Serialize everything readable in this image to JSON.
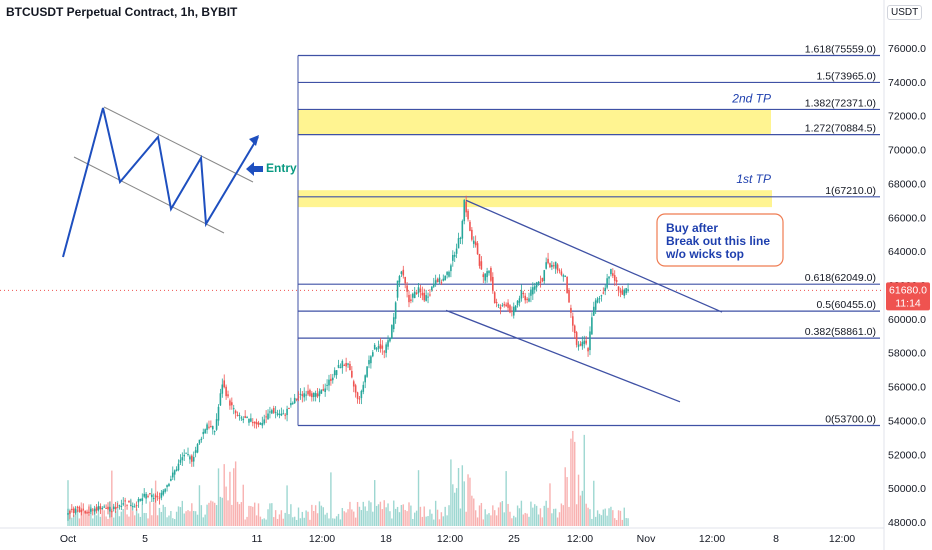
{
  "header": {
    "title": "BTCUSDT Perpetual Contract, 1h, BYBIT",
    "currency": "USDT"
  },
  "colors": {
    "up": "#26a69a",
    "down": "#ef5350",
    "fib_line": "#3f51a5",
    "tp_zone": "#fff176",
    "annotation_blue": "#1e3fae",
    "entry_green": "#089981",
    "callout_border": "#ef7c52",
    "price_tag": "#ef5350",
    "channel_line": "#3f51a5",
    "pattern_line": "#1e4fbf",
    "pattern_channel": "#888888"
  },
  "chart_data": {
    "type": "candlestick",
    "symbol": "BTCUSDT Perpetual Contract",
    "timeframe": "1h",
    "exchange": "BYBIT",
    "yaxis": {
      "ticks": [
        48000,
        50000,
        52000,
        54000,
        56000,
        58000,
        60000,
        62000,
        64000,
        66000,
        68000,
        70000,
        72000,
        74000,
        76000
      ],
      "tick_labels": [
        "48000.0",
        "50000.0",
        "52000.0",
        "54000.0",
        "56000.0",
        "58000.0",
        "60000.0",
        "62000.0",
        "64000.0",
        "66000.0",
        "68000.0",
        "70000.0",
        "72000.0",
        "74000.0",
        "76000.0"
      ],
      "ylim": [
        47400,
        77400
      ]
    },
    "xaxis": {
      "labels": [
        "Oct",
        "5",
        "11",
        "12:00",
        "18",
        "12:00",
        "25",
        "12:00",
        "Nov",
        "12:00",
        "8",
        "12:00"
      ]
    },
    "current_price": {
      "value": 61680.0,
      "label": "61680.0",
      "countdown": "11:14"
    },
    "price_path": [
      [
        0,
        48500
      ],
      [
        6,
        48800
      ],
      [
        12,
        48600
      ],
      [
        18,
        48900
      ],
      [
        24,
        48700
      ],
      [
        30,
        49200
      ],
      [
        36,
        49000
      ],
      [
        42,
        49600
      ],
      [
        48,
        49400
      ],
      [
        54,
        50400
      ],
      [
        58,
        51200
      ],
      [
        62,
        52000
      ],
      [
        66,
        51700
      ],
      [
        70,
        52800
      ],
      [
        74,
        53800
      ],
      [
        78,
        53400
      ],
      [
        82,
        56200
      ],
      [
        86,
        55000
      ],
      [
        90,
        54200
      ],
      [
        96,
        54000
      ],
      [
        102,
        53800
      ],
      [
        108,
        54600
      ],
      [
        114,
        54300
      ],
      [
        120,
        55200
      ],
      [
        126,
        55700
      ],
      [
        132,
        55400
      ],
      [
        138,
        56300
      ],
      [
        142,
        57000
      ],
      [
        145,
        57400
      ],
      [
        148,
        57200
      ],
      [
        151,
        56000
      ],
      [
        153,
        55200
      ],
      [
        155,
        55600
      ],
      [
        158,
        57200
      ],
      [
        161,
        58200
      ],
      [
        164,
        58500
      ],
      [
        167,
        58000
      ],
      [
        170,
        59000
      ],
      [
        172,
        60000
      ],
      [
        174,
        62200
      ],
      [
        176,
        62800
      ],
      [
        178,
        62000
      ],
      [
        180,
        61000
      ],
      [
        182,
        61400
      ],
      [
        185,
        61700
      ],
      [
        188,
        61200
      ],
      [
        191,
        61600
      ],
      [
        194,
        62400
      ],
      [
        197,
        62200
      ],
      [
        200,
        62600
      ],
      [
        203,
        63600
      ],
      [
        205,
        64300
      ],
      [
        207,
        64900
      ],
      [
        209,
        67000
      ],
      [
        211,
        65800
      ],
      [
        213,
        64600
      ],
      [
        215,
        64400
      ],
      [
        217,
        63300
      ],
      [
        219,
        62300
      ],
      [
        222,
        63000
      ],
      [
        225,
        61000
      ],
      [
        228,
        60600
      ],
      [
        231,
        60900
      ],
      [
        234,
        60300
      ],
      [
        236,
        60800
      ],
      [
        239,
        61500
      ],
      [
        242,
        61100
      ],
      [
        245,
        61800
      ],
      [
        248,
        62300
      ],
      [
        250,
        62200
      ],
      [
        252,
        63500
      ],
      [
        254,
        63000
      ],
      [
        257,
        63200
      ],
      [
        259,
        62800
      ],
      [
        262,
        62400
      ],
      [
        264,
        60800
      ],
      [
        266,
        59600
      ],
      [
        268,
        58500
      ],
      [
        270,
        58300
      ],
      [
        272,
        58700
      ],
      [
        274,
        58200
      ],
      [
        276,
        60200
      ],
      [
        278,
        61000
      ],
      [
        280,
        61200
      ],
      [
        282,
        61600
      ],
      [
        284,
        62400
      ],
      [
        286,
        62800
      ],
      [
        288,
        62300
      ],
      [
        290,
        61800
      ],
      [
        292,
        61400
      ],
      [
        294,
        61680
      ]
    ],
    "volume_note": "green/red volume bars along the bottom, largest around the Oct 20-21 and Oct 28 region",
    "fib_levels": [
      {
        "ratio_label": "1.618(75559.0)",
        "price": 75559.0
      },
      {
        "ratio_label": "1.5(73965.0)",
        "price": 73965.0
      },
      {
        "ratio_label": "1.382(72371.0)",
        "price": 72371.0
      },
      {
        "ratio_label": "1.272(70884.5)",
        "price": 70884.5
      },
      {
        "ratio_label": "1(67210.0)",
        "price": 67210.0
      },
      {
        "ratio_label": "0.618(62049.0)",
        "price": 62049.0
      },
      {
        "ratio_label": "0.5(60455.0)",
        "price": 60455.0
      },
      {
        "ratio_label": "0.382(58861.0)",
        "price": 58861.0
      },
      {
        "ratio_label": "0(53700.0)",
        "price": 53700.0
      }
    ],
    "take_profit_zones": [
      {
        "label": "2nd TP",
        "from_price": 70884.5,
        "to_price": 72371.0
      },
      {
        "label": "1st TP",
        "from_price": 66600.0,
        "to_price": 67600.0
      }
    ],
    "channel": {
      "upper": {
        "from": {
          "x": 209,
          "price": 67000
        },
        "to": {
          "x": 338,
          "price": 60400
        }
      },
      "lower": {
        "from": {
          "x": 217,
          "price": 60500
        },
        "to": {
          "x": 305,
          "price": 55100
        }
      }
    },
    "annotations": {
      "callout": "Buy after\nBreak out this line\nw/o wicks top",
      "entry": "Entry"
    }
  }
}
